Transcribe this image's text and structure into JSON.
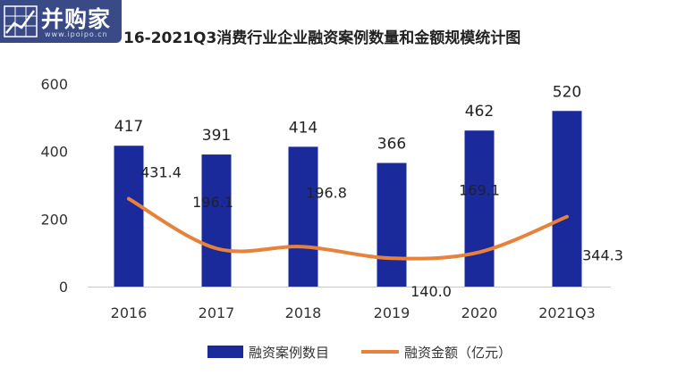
{
  "logo": {
    "brand_text": "并购家",
    "url_text": "www.ipoipo.cn",
    "icon": "chart-grid-icon"
  },
  "chart_data": {
    "type": "bar",
    "title": "16-2021Q3消费行业企业融资案例数量和金额规模统计图",
    "categories": [
      "2016",
      "2017",
      "2018",
      "2019",
      "2020",
      "2021Q3"
    ],
    "ylim": [
      0,
      600
    ],
    "yticks": [
      "0",
      "200",
      "400",
      "600"
    ],
    "grid": false,
    "legend_position": "bottom",
    "series": [
      {
        "name": "融资案例数目",
        "type": "bar",
        "values": [
          417,
          391,
          414,
          366,
          462,
          520
        ],
        "labels": [
          "417",
          "391",
          "414",
          "366",
          "462",
          "520"
        ],
        "color": "#1a2a9a"
      },
      {
        "name": "融资金额（亿元）",
        "type": "line",
        "smooth": true,
        "values": [
          431.4,
          196.1,
          196.8,
          140.0,
          169.1,
          344.3
        ],
        "labels": [
          "431.4",
          "196.1",
          "196.8",
          "140.0",
          "169.1",
          "344.3"
        ],
        "plotted_on_left_axis": [
          260,
          113,
          118,
          84,
          102,
          207
        ],
        "color": "#e8823a"
      }
    ]
  }
}
